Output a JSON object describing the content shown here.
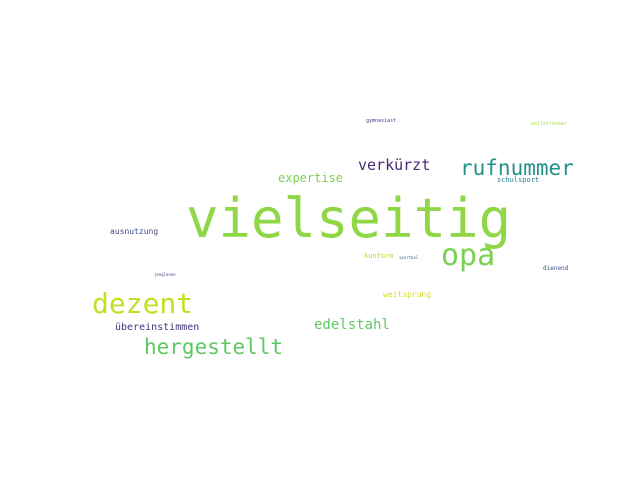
{
  "words": {
    "vielseitig": {
      "text": "vielseitig",
      "color": "#8fd744"
    },
    "opa": {
      "text": "opa",
      "color": "#7ad151"
    },
    "rufnummer": {
      "text": "rufnummer",
      "color": "#21918c"
    },
    "dezent": {
      "text": "dezent",
      "color": "#c2df23"
    },
    "hergestellt": {
      "text": "hergestellt",
      "color": "#5ec962"
    },
    "verkuerzt": {
      "text": "verkürzt",
      "color": "#482878"
    },
    "expertise": {
      "text": "expertise",
      "color": "#7ad151"
    },
    "edelstahl": {
      "text": "edelstahl",
      "color": "#5ec962"
    },
    "uebereinstimmen": {
      "text": "übereinstimmen",
      "color": "#46327e"
    },
    "ausnutzung": {
      "text": "ausnutzung",
      "color": "#3e4989"
    },
    "weitsprung": {
      "text": "weitsprung",
      "color": "#d8e219"
    },
    "konform": {
      "text": "konform",
      "color": "#b5de2b"
    },
    "sportbol": {
      "text": "sportbol",
      "color": "#31688e"
    },
    "schulsport": {
      "text": "schulsport",
      "color": "#26828e"
    },
    "gymnasiast": {
      "text": "gymnasiast",
      "color": "#443a83"
    },
    "vollstrecker": {
      "text": "vollstrecker",
      "color": "#a0da39"
    },
    "dienend": {
      "text": "dienend",
      "color": "#3b528b"
    },
    "jenglanen": {
      "text": "jenglanen",
      "color": "#414487"
    }
  }
}
